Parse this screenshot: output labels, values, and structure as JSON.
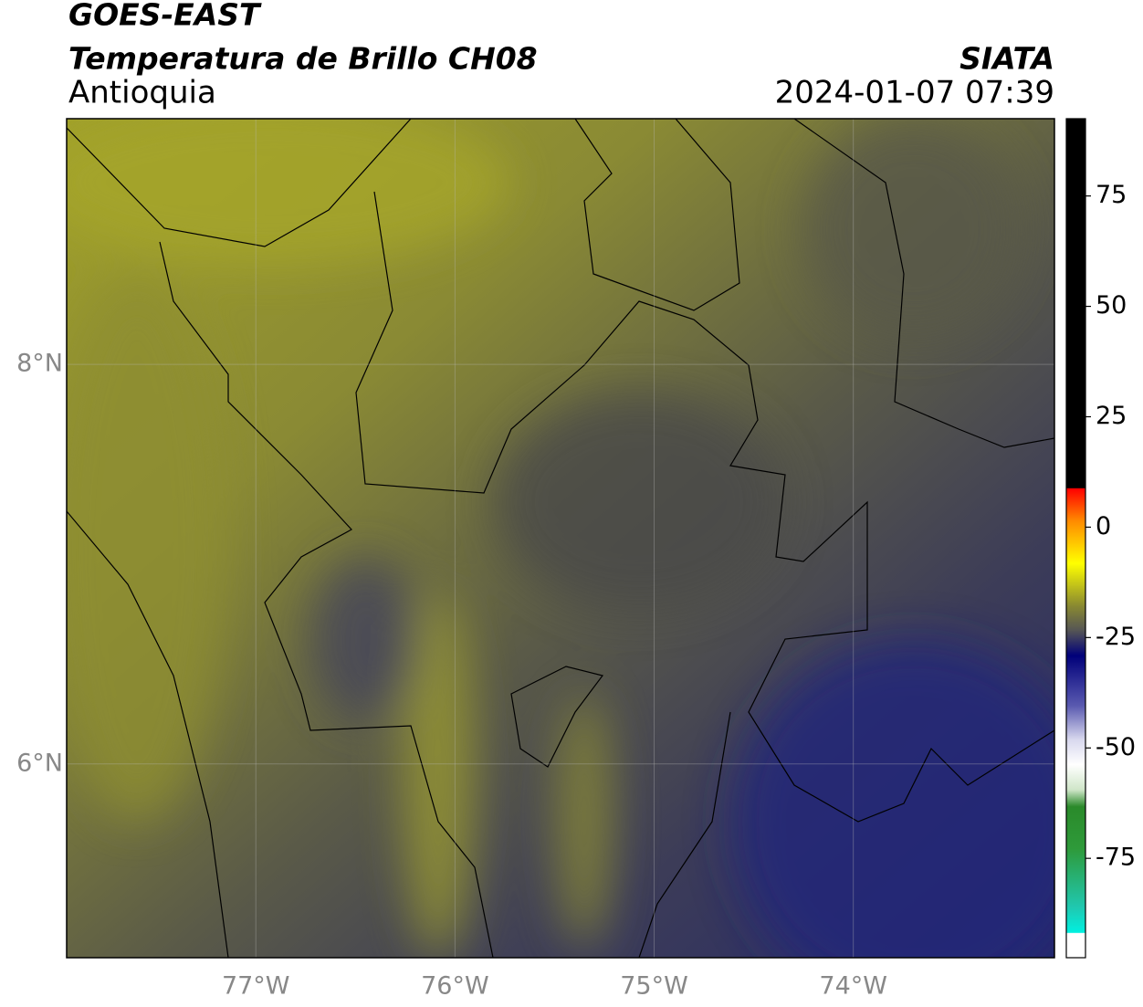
{
  "header": {
    "title": "GOES-EAST",
    "subtitle": "Temperatura de Brillo CH08",
    "region": "Antioquia",
    "source": "SIATA",
    "datetime": "2024-01-07 07:39"
  },
  "map": {
    "xlim": [
      -77.95,
      -72.99
    ],
    "ylim": [
      5.03,
      9.23
    ],
    "xticks": [
      {
        "value": -77,
        "label": "77°W"
      },
      {
        "value": -76,
        "label": "76°W"
      },
      {
        "value": -75,
        "label": "75°W"
      },
      {
        "value": -74,
        "label": "74°W"
      }
    ],
    "yticks": [
      {
        "value": 6,
        "label": "6°N"
      },
      {
        "value": 8,
        "label": "8°N"
      }
    ],
    "grid": true
  },
  "colorbar": {
    "lim": [
      -97.5,
      92.5
    ],
    "ticks": [
      75,
      50,
      25,
      0,
      -25,
      -50,
      -75
    ]
  }
}
